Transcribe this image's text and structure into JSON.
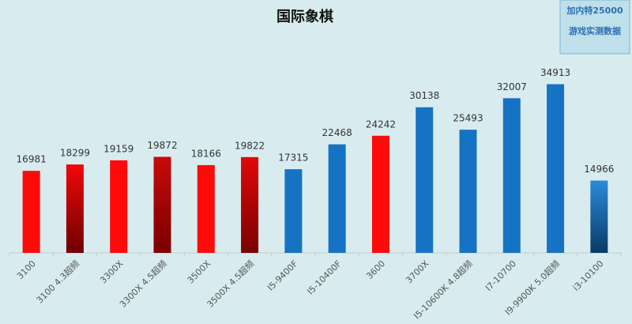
{
  "chart_data": {
    "type": "bar",
    "title": "国际象棋",
    "notes": [
      "加内特25000",
      "游戏实测数据"
    ],
    "categories": [
      "3100",
      "3100 4.3超频",
      "3300X",
      "3300X 4.5超频",
      "3500X",
      "3500X 4.5超频",
      "I5-9400F",
      "I5-10400F",
      "3600",
      "3700X",
      "I5-10600K 4.8超频",
      "I7-10700",
      "I9-9900K 5.0超频",
      "i3-10100"
    ],
    "values": [
      16981,
      18299,
      19159,
      19872,
      18166,
      19822,
      17315,
      22468,
      24242,
      30138,
      25493,
      32007,
      34913,
      14966
    ],
    "colors": [
      "#ff0a0a",
      "#f00808",
      "#ff0a0a",
      "#c80a0a",
      "#ff0a0a",
      "#e00808",
      "#1673c4",
      "#1673c4",
      "#ff0a0a",
      "#1673c4",
      "#1673c4",
      "#1673c4",
      "#1673c4",
      "#2a8ad8"
    ],
    "bottom_colors": [
      "#ff0a0a",
      "#6e0000",
      "#ff0a0a",
      "#7a0000",
      "#ff0a0a",
      "#7a0000",
      "#1673c4",
      "#1673c4",
      "#ff0a0a",
      "#1673c4",
      "#1673c4",
      "#1673c4",
      "#1673c4",
      "#0a3a66"
    ],
    "ylim": [
      0,
      35000
    ]
  }
}
